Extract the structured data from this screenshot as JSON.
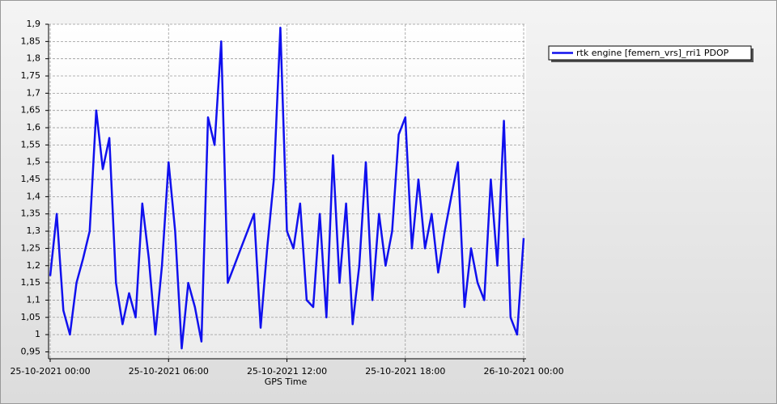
{
  "chart_data": {
    "type": "line",
    "x_label": "GPS Time",
    "x": [
      "25-10-2021 00:00",
      "25-10-2021 00:20",
      "25-10-2021 00:40",
      "25-10-2021 01:00",
      "25-10-2021 01:20",
      "25-10-2021 01:40",
      "25-10-2021 02:00",
      "25-10-2021 02:20",
      "25-10-2021 02:40",
      "25-10-2021 03:00",
      "25-10-2021 03:20",
      "25-10-2021 03:40",
      "25-10-2021 04:00",
      "25-10-2021 04:20",
      "25-10-2021 04:40",
      "25-10-2021 05:00",
      "25-10-2021 05:20",
      "25-10-2021 05:40",
      "25-10-2021 06:00",
      "25-10-2021 06:20",
      "25-10-2021 06:40",
      "25-10-2021 07:00",
      "25-10-2021 07:20",
      "25-10-2021 07:40",
      "25-10-2021 08:00",
      "25-10-2021 08:20",
      "25-10-2021 08:40",
      "25-10-2021 09:00",
      "25-10-2021 09:20",
      "25-10-2021 09:40",
      "25-10-2021 10:00",
      "25-10-2021 10:20",
      "25-10-2021 10:40",
      "25-10-2021 11:00",
      "25-10-2021 11:20",
      "25-10-2021 11:40",
      "25-10-2021 12:00",
      "25-10-2021 12:20",
      "25-10-2021 12:40",
      "25-10-2021 13:00",
      "25-10-2021 13:20",
      "25-10-2021 13:40",
      "25-10-2021 14:00",
      "25-10-2021 14:20",
      "25-10-2021 14:40",
      "25-10-2021 15:00",
      "25-10-2021 15:20",
      "25-10-2021 15:40",
      "25-10-2021 16:00",
      "25-10-2021 16:20",
      "25-10-2021 16:40",
      "25-10-2021 17:00",
      "25-10-2021 17:20",
      "25-10-2021 17:40",
      "25-10-2021 18:00",
      "25-10-2021 18:20",
      "25-10-2021 18:40",
      "25-10-2021 19:00",
      "25-10-2021 19:20",
      "25-10-2021 19:40",
      "25-10-2021 20:00",
      "25-10-2021 20:20",
      "25-10-2021 20:40",
      "25-10-2021 21:00",
      "25-10-2021 21:20",
      "25-10-2021 21:40",
      "25-10-2021 22:00",
      "25-10-2021 22:20",
      "25-10-2021 22:40",
      "25-10-2021 23:00",
      "25-10-2021 23:20",
      "25-10-2021 23:40",
      "26-10-2021 00:00"
    ],
    "series": [
      {
        "name": "rtk engine [femern_vrs]_rri1 PDOP",
        "color": "#1010ee",
        "values": [
          1.17,
          1.35,
          1.07,
          1.0,
          1.15,
          1.22,
          1.3,
          1.65,
          1.48,
          1.57,
          1.15,
          1.03,
          1.12,
          1.05,
          1.38,
          1.22,
          1.0,
          1.2,
          1.5,
          1.3,
          0.96,
          1.15,
          1.08,
          0.98,
          1.63,
          1.55,
          1.85,
          1.15,
          1.2,
          1.25,
          1.3,
          1.35,
          1.02,
          1.25,
          1.45,
          1.89,
          1.3,
          1.25,
          1.38,
          1.1,
          1.08,
          1.35,
          1.05,
          1.52,
          1.15,
          1.38,
          1.03,
          1.2,
          1.5,
          1.1,
          1.35,
          1.2,
          1.3,
          1.58,
          1.63,
          1.25,
          1.45,
          1.25,
          1.35,
          1.18,
          1.3,
          1.4,
          1.5,
          1.08,
          1.25,
          1.15,
          1.1,
          1.45,
          1.2,
          1.62,
          1.05,
          1.0,
          1.28
        ]
      }
    ],
    "xlim": [
      "25-10-2021 00:00",
      "26-10-2021 00:00"
    ],
    "xticks": [
      "25-10-2021 00:00",
      "25-10-2021 06:00",
      "25-10-2021 12:00",
      "25-10-2021 18:00",
      "26-10-2021 00:00"
    ],
    "ylim": [
      0.93,
      1.9
    ],
    "yticks": [
      {
        "value": 0.95,
        "label": "0,95"
      },
      1,
      {
        "value": 1.05,
        "label": "1,05"
      },
      {
        "value": 1.1,
        "label": "1,1"
      },
      {
        "value": 1.15,
        "label": "1,15"
      },
      {
        "value": 1.2,
        "label": "1,2"
      },
      {
        "value": 1.25,
        "label": "1,25"
      },
      {
        "value": 1.3,
        "label": "1,3"
      },
      {
        "value": 1.35,
        "label": "1,35"
      },
      {
        "value": 1.4,
        "label": "1,4"
      },
      {
        "value": 1.45,
        "label": "1,45"
      },
      {
        "value": 1.5,
        "label": "1,5"
      },
      {
        "value": 1.55,
        "label": "1,55"
      },
      {
        "value": 1.6,
        "label": "1,6"
      },
      {
        "value": 1.65,
        "label": "1,65"
      },
      {
        "value": 1.7,
        "label": "1,7"
      },
      {
        "value": 1.75,
        "label": "1,75"
      },
      {
        "value": 1.8,
        "label": "1,8"
      },
      {
        "value": 1.85,
        "label": "1,85"
      },
      {
        "value": 1.9,
        "label": "1,9"
      }
    ],
    "grid": true,
    "legend": "right"
  }
}
